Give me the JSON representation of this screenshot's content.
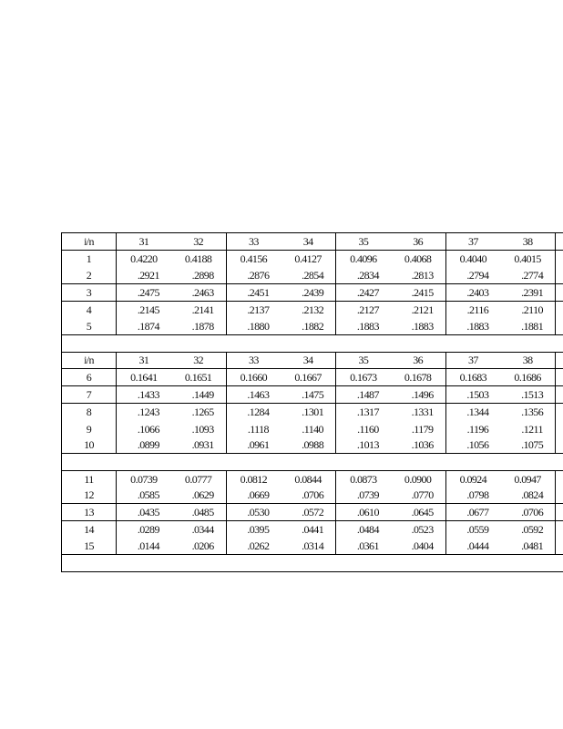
{
  "table": {
    "sections": [
      {
        "header": {
          "label": "i/n",
          "columns": [
            "31",
            "32",
            "33",
            "34",
            "35",
            "36",
            "37",
            "38",
            ""
          ]
        },
        "rows": [
          {
            "i": "1",
            "values": [
              "0.4220",
              "0.4188",
              "0.4156",
              "0.4127",
              "0.4096",
              "0.4068",
              "0.4040",
              "0.4015",
              ""
            ]
          },
          {
            "i": "2",
            "values": [
              ".2921",
              ".2898",
              ".2876",
              ".2854",
              ".2834",
              ".2813",
              ".2794",
              ".2774",
              ""
            ]
          },
          {
            "i": "3",
            "values": [
              ".2475",
              ".2463",
              ".2451",
              ".2439",
              ".2427",
              ".2415",
              ".2403",
              ".2391",
              ""
            ]
          },
          {
            "i": "4",
            "values": [
              ".2145",
              ".2141",
              ".2137",
              ".2132",
              ".2127",
              ".2121",
              ".2116",
              ".2110",
              ""
            ]
          },
          {
            "i": "5",
            "values": [
              ".1874",
              ".1878",
              ".1880",
              ".1882",
              ".1883",
              ".1883",
              ".1883",
              ".1881",
              ""
            ]
          }
        ]
      },
      {
        "header": {
          "label": "i/n",
          "columns": [
            "31",
            "32",
            "33",
            "34",
            "35",
            "36",
            "37",
            "38",
            ""
          ]
        },
        "rows": [
          {
            "i": "6",
            "values": [
              "0.1641",
              "0.1651",
              "0.1660",
              "0.1667",
              "0.1673",
              "0.1678",
              "0.1683",
              "0.1686",
              ""
            ]
          },
          {
            "i": "7",
            "values": [
              ".1433",
              ".1449",
              ".1463",
              ".1475",
              ".1487",
              ".1496",
              ".1503",
              ".1513",
              ""
            ]
          },
          {
            "i": "8",
            "values": [
              ".1243",
              ".1265",
              ".1284",
              ".1301",
              ".1317",
              ".1331",
              ".1344",
              ".1356",
              ""
            ]
          },
          {
            "i": "9",
            "values": [
              ".1066",
              ".1093",
              ".1118",
              ".1140",
              ".1160",
              ".1179",
              ".1196",
              ".1211",
              ""
            ]
          },
          {
            "i": "10",
            "values": [
              ".0899",
              ".0931",
              ".0961",
              ".0988",
              ".1013",
              ".1036",
              ".1056",
              ".1075",
              ""
            ]
          }
        ]
      },
      {
        "rows": [
          {
            "i": "11",
            "values": [
              "0.0739",
              "0.0777",
              "0.0812",
              "0.0844",
              "0.0873",
              "0.0900",
              "0.0924",
              "0.0947",
              ""
            ]
          },
          {
            "i": "12",
            "values": [
              ".0585",
              ".0629",
              ".0669",
              ".0706",
              ".0739",
              ".0770",
              ".0798",
              ".0824",
              ""
            ]
          },
          {
            "i": "13",
            "values": [
              ".0435",
              ".0485",
              ".0530",
              ".0572",
              ".0610",
              ".0645",
              ".0677",
              ".0706",
              ""
            ]
          },
          {
            "i": "14",
            "values": [
              ".0289",
              ".0344",
              ".0395",
              ".0441",
              ".0484",
              ".0523",
              ".0559",
              ".0592",
              ""
            ]
          },
          {
            "i": "15",
            "values": [
              ".0144",
              ".0206",
              ".0262",
              ".0314",
              ".0361",
              ".0404",
              ".0444",
              ".0481",
              ""
            ]
          }
        ]
      }
    ]
  }
}
